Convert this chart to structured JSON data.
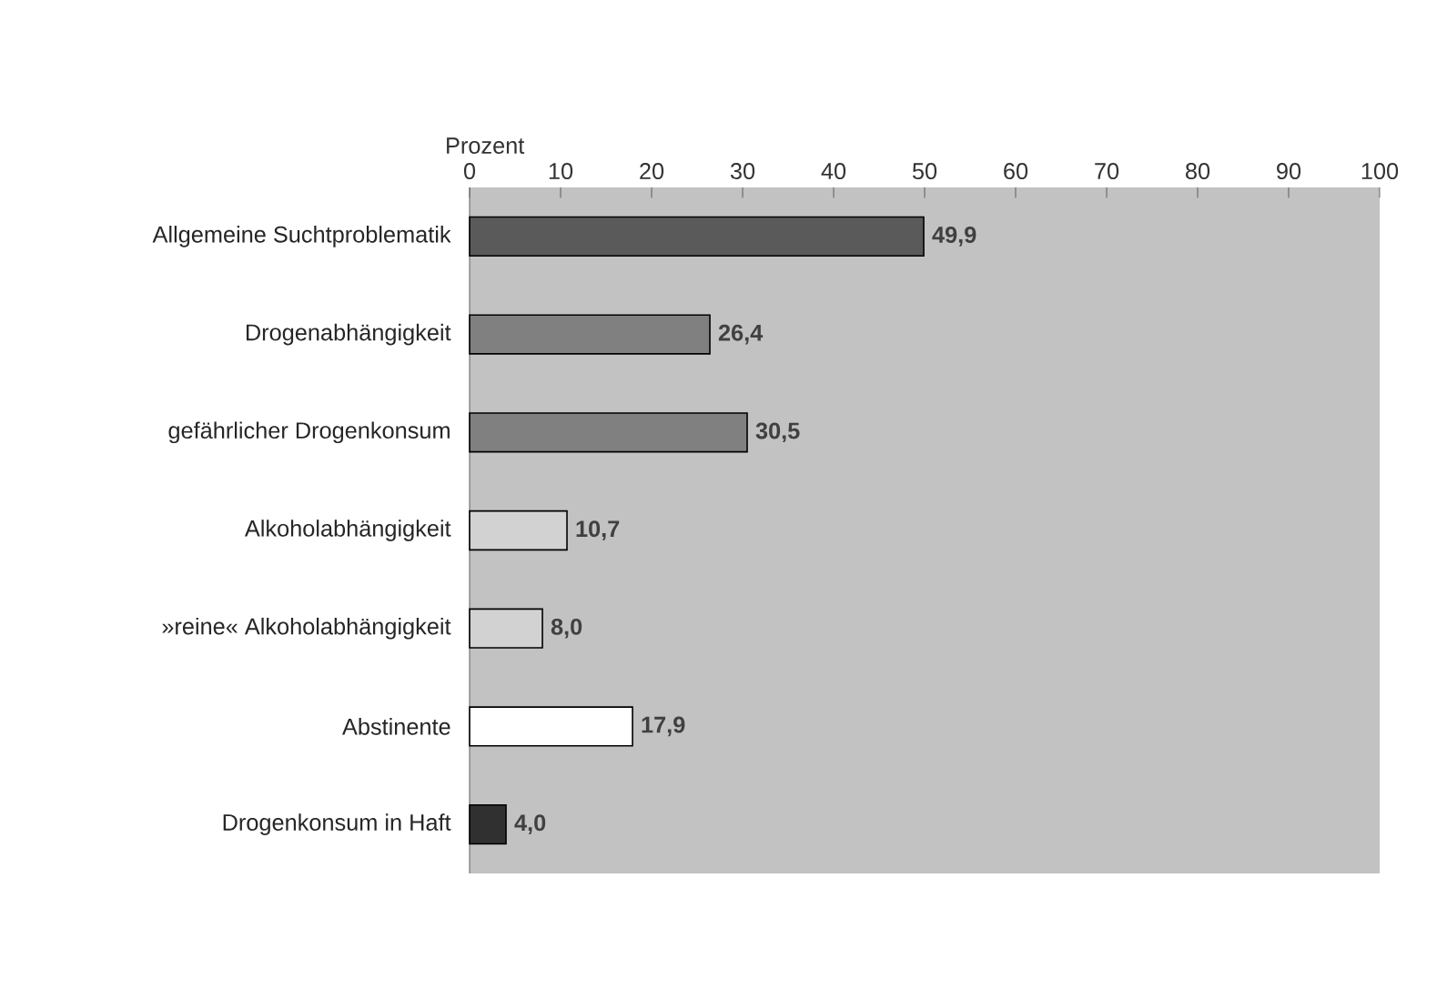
{
  "chart_data": {
    "type": "bar",
    "orientation": "horizontal",
    "xlabel": "Prozent",
    "categories": [
      "Allgemeine Suchtproblematik",
      "Drogenabhängigkeit",
      "gefährlicher Drogenkonsum",
      "Alkoholabhängigkeit",
      "»reine« Alkoholabhängigkeit",
      "Abstinente",
      "Drogenkonsum in Haft"
    ],
    "values": [
      49.9,
      26.4,
      30.5,
      10.7,
      8.0,
      17.9,
      4.0
    ],
    "value_labels": [
      "49,9",
      "26,4",
      "30,5",
      "10,7",
      "8,0",
      "17,9",
      "4,0"
    ],
    "colors": [
      "#5a5a5a",
      "#808080",
      "#808080",
      "#d2d2d2",
      "#d2d2d2",
      "#ffffff",
      "#303030"
    ],
    "xlim": [
      0,
      100
    ],
    "xticks": [
      0,
      10,
      20,
      30,
      40,
      50,
      60,
      70,
      80,
      90,
      100
    ],
    "grid": false
  }
}
